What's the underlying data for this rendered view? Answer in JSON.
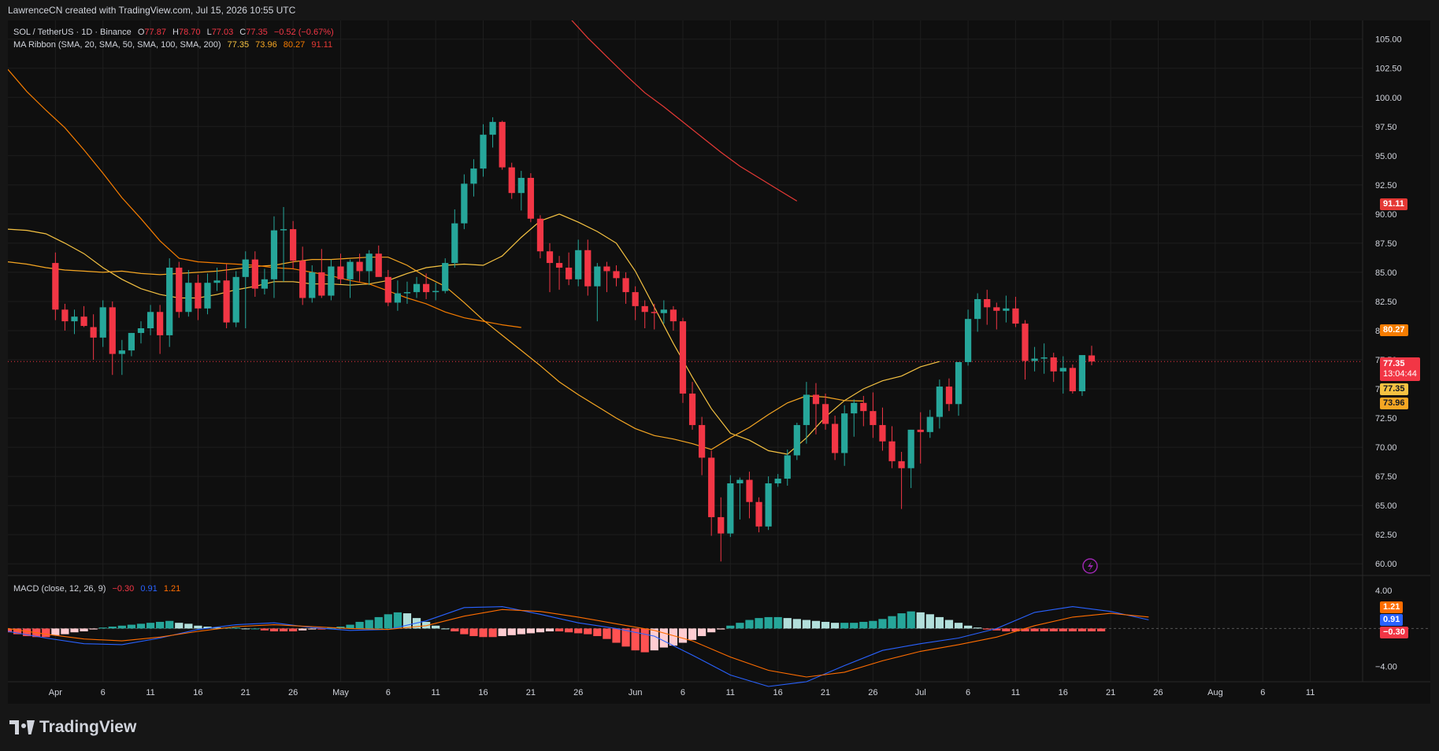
{
  "header": {
    "credit": "LawrenceCN created with TradingView.com, Jul 15, 2026 10:55 UTC"
  },
  "legend": {
    "symbol": "SOL / TetherUS · 1D · Binance",
    "o_label": "O",
    "o_value": "77.87",
    "h_label": "H",
    "h_value": "78.70",
    "l_label": "L",
    "l_value": "77.03",
    "c_label": "C",
    "c_value": "77.35",
    "change": "−0.52 (−0.67%)",
    "ma_title": "MA Ribbon (SMA, 20, SMA, 50, SMA, 100, SMA, 200)",
    "ma_values": [
      "77.35",
      "73.96",
      "80.27",
      "91.11"
    ],
    "macd_title": "MACD (close, 12, 26, 9)",
    "macd_values": [
      "−0.30",
      "0.91",
      "1.21"
    ]
  },
  "price_tags": {
    "ma200": "91.11",
    "ma100": "80.27",
    "last": "77.35",
    "countdown": "13:04:44",
    "ma20": "77.35",
    "ma50": "73.96"
  },
  "macd_tags": {
    "signal": "1.21",
    "macd": "0.91",
    "hist": "−0.30"
  },
  "footer": {
    "brand": "TradingView"
  },
  "colors": {
    "up": "#26a69a",
    "down": "#f23645",
    "ma20": "#f5c242",
    "ma50": "#f5a623",
    "ma100": "#f57c00",
    "ma200": "#e53935",
    "macd": "#2962ff",
    "signal": "#ff6d00"
  },
  "chart_data": [
    {
      "type": "candlestick",
      "title": "SOL / TetherUS · 1D · Binance",
      "x_ticks": [
        {
          "day": 0,
          "label": "Apr"
        },
        {
          "day": 5,
          "label": "6"
        },
        {
          "day": 10,
          "label": "11"
        },
        {
          "day": 15,
          "label": "16"
        },
        {
          "day": 20,
          "label": "21"
        },
        {
          "day": 25,
          "label": "26"
        },
        {
          "day": 30,
          "label": "May"
        },
        {
          "day": 35,
          "label": "6"
        },
        {
          "day": 40,
          "label": "11"
        },
        {
          "day": 45,
          "label": "16"
        },
        {
          "day": 50,
          "label": "21"
        },
        {
          "day": 55,
          "label": "26"
        },
        {
          "day": 61,
          "label": "Jun"
        },
        {
          "day": 66,
          "label": "6"
        },
        {
          "day": 71,
          "label": "11"
        },
        {
          "day": 76,
          "label": "16"
        },
        {
          "day": 81,
          "label": "21"
        },
        {
          "day": 86,
          "label": "26"
        },
        {
          "day": 91,
          "label": "Jul"
        },
        {
          "day": 96,
          "label": "6"
        },
        {
          "day": 101,
          "label": "11"
        },
        {
          "day": 106,
          "label": "16"
        },
        {
          "day": 111,
          "label": "21"
        },
        {
          "day": 116,
          "label": "26"
        },
        {
          "day": 122,
          "label": "Aug"
        },
        {
          "day": 127,
          "label": "6"
        },
        {
          "day": 132,
          "label": "11"
        }
      ],
      "y_ticks": [
        "60.00",
        "62.50",
        "65.00",
        "67.50",
        "70.00",
        "72.50",
        "75.00",
        "77.50",
        "80.00",
        "82.50",
        "85.00",
        "87.50",
        "90.00",
        "92.50",
        "95.00",
        "97.50",
        "100.00",
        "102.50",
        "105.00"
      ],
      "ylim": [
        59.0,
        106.6
      ],
      "xlim": [
        -5,
        137.5
      ],
      "candles_ohlc": [
        [
          85.8,
          86.7,
          80.9,
          81.8
        ],
        [
          81.8,
          82.3,
          80.0,
          80.8
        ],
        [
          80.8,
          81.8,
          79.7,
          81.2
        ],
        [
          81.2,
          82.1,
          80.3,
          80.4
        ],
        [
          80.3,
          81.4,
          77.5,
          79.4
        ],
        [
          79.4,
          82.6,
          78.6,
          82.0
        ],
        [
          82.0,
          82.5,
          76.2,
          78.0
        ],
        [
          78.0,
          79.2,
          76.2,
          78.3
        ],
        [
          78.3,
          79.8,
          77.8,
          79.8
        ],
        [
          79.8,
          80.8,
          78.9,
          80.2
        ],
        [
          80.2,
          82.2,
          79.6,
          81.6
        ],
        [
          81.6,
          82.2,
          78.0,
          79.6
        ],
        [
          79.6,
          86.2,
          78.6,
          85.4
        ],
        [
          85.4,
          85.9,
          81.1,
          81.6
        ],
        [
          81.6,
          85.2,
          81.2,
          84.1
        ],
        [
          84.1,
          84.8,
          80.9,
          81.9
        ],
        [
          81.9,
          84.9,
          81.4,
          84.1
        ],
        [
          84.1,
          85.4,
          83.4,
          84.3
        ],
        [
          84.3,
          85.7,
          80.2,
          80.7
        ],
        [
          80.7,
          85.1,
          80.3,
          84.6
        ],
        [
          84.6,
          86.8,
          80.2,
          86.1
        ],
        [
          86.1,
          86.8,
          82.9,
          83.6
        ],
        [
          83.6,
          85.3,
          83.1,
          84.4
        ],
        [
          84.4,
          89.8,
          82.8,
          88.6
        ],
        [
          88.6,
          90.6,
          84.2,
          88.7
        ],
        [
          88.7,
          89.4,
          85.3,
          86.0
        ],
        [
          86.0,
          87.2,
          82.2,
          82.8
        ],
        [
          82.8,
          85.6,
          82.4,
          85.0
        ],
        [
          85.0,
          87.0,
          82.8,
          83.0
        ],
        [
          83.0,
          86.1,
          82.6,
          85.5
        ],
        [
          85.5,
          86.6,
          84.0,
          84.4
        ],
        [
          84.4,
          86.1,
          82.8,
          85.9
        ],
        [
          85.9,
          86.6,
          84.2,
          85.1
        ],
        [
          85.1,
          86.9,
          83.9,
          86.6
        ],
        [
          86.6,
          87.3,
          84.9,
          84.6
        ],
        [
          84.6,
          85.2,
          82.1,
          82.4
        ],
        [
          82.4,
          84.3,
          81.7,
          83.2
        ],
        [
          83.2,
          84.2,
          82.3,
          83.3
        ],
        [
          83.3,
          84.6,
          82.8,
          84.0
        ],
        [
          84.0,
          84.9,
          82.7,
          83.3
        ],
        [
          83.3,
          84.1,
          82.6,
          83.4
        ],
        [
          83.4,
          86.2,
          83.2,
          85.8
        ],
        [
          85.8,
          90.4,
          85.4,
          89.2
        ],
        [
          89.2,
          93.4,
          88.7,
          92.6
        ],
        [
          92.6,
          94.7,
          91.5,
          93.9
        ],
        [
          93.9,
          97.7,
          93.2,
          96.8
        ],
        [
          96.8,
          98.3,
          95.7,
          97.9
        ],
        [
          97.9,
          98.0,
          93.8,
          94.0
        ],
        [
          94.0,
          94.4,
          91.3,
          91.8
        ],
        [
          91.8,
          93.7,
          90.3,
          93.1
        ],
        [
          93.1,
          93.5,
          89.3,
          89.6
        ],
        [
          89.6,
          89.9,
          86.2,
          86.8
        ],
        [
          86.8,
          87.5,
          83.3,
          85.8
        ],
        [
          85.8,
          86.4,
          83.5,
          85.4
        ],
        [
          85.4,
          86.7,
          83.9,
          84.4
        ],
        [
          84.4,
          87.8,
          83.8,
          86.9
        ],
        [
          86.9,
          87.8,
          83.0,
          83.8
        ],
        [
          83.8,
          85.8,
          80.8,
          85.5
        ],
        [
          85.5,
          85.9,
          83.3,
          85.1
        ],
        [
          85.1,
          85.6,
          83.8,
          84.5
        ],
        [
          84.5,
          85.0,
          82.3,
          83.3
        ],
        [
          83.3,
          83.8,
          80.9,
          82.1
        ],
        [
          82.1,
          82.6,
          80.2,
          81.6
        ],
        [
          81.6,
          82.3,
          80.1,
          81.5
        ],
        [
          81.5,
          82.6,
          80.6,
          81.8
        ],
        [
          81.8,
          82.1,
          80.0,
          80.8
        ],
        [
          80.8,
          81.1,
          73.8,
          74.6
        ],
        [
          74.6,
          75.6,
          71.5,
          71.9
        ],
        [
          71.9,
          72.6,
          67.6,
          69.1
        ],
        [
          69.1,
          69.7,
          62.4,
          64.0
        ],
        [
          64.0,
          65.7,
          60.2,
          62.6
        ],
        [
          62.6,
          67.6,
          62.3,
          66.9
        ],
        [
          66.9,
          67.4,
          63.8,
          67.2
        ],
        [
          67.2,
          67.9,
          63.9,
          65.3
        ],
        [
          65.3,
          65.7,
          62.7,
          63.2
        ],
        [
          63.2,
          67.5,
          62.9,
          66.9
        ],
        [
          66.9,
          67.7,
          66.6,
          67.3
        ],
        [
          67.3,
          69.8,
          66.7,
          69.3
        ],
        [
          69.3,
          72.1,
          68.9,
          71.9
        ],
        [
          71.9,
          75.6,
          70.3,
          74.5
        ],
        [
          74.5,
          75.5,
          71.1,
          73.7
        ],
        [
          73.7,
          74.6,
          71.5,
          72.0
        ],
        [
          72.0,
          72.7,
          68.9,
          69.5
        ],
        [
          69.5,
          73.6,
          68.4,
          72.9
        ],
        [
          72.9,
          74.1,
          70.9,
          73.8
        ],
        [
          73.8,
          74.4,
          71.8,
          73.1
        ],
        [
          73.1,
          74.7,
          70.8,
          71.9
        ],
        [
          71.9,
          73.4,
          69.7,
          70.5
        ],
        [
          70.5,
          71.8,
          68.2,
          68.8
        ],
        [
          68.8,
          69.6,
          64.7,
          68.2
        ],
        [
          68.2,
          69.3,
          66.5,
          71.5
        ],
        [
          71.5,
          73.0,
          68.6,
          71.3
        ],
        [
          71.3,
          73.2,
          70.8,
          72.6
        ],
        [
          72.6,
          75.8,
          71.6,
          75.2
        ],
        [
          75.2,
          75.9,
          73.1,
          73.7
        ],
        [
          73.7,
          77.2,
          72.7,
          77.3
        ],
        [
          77.3,
          81.8,
          77.0,
          81.0
        ],
        [
          81.0,
          83.2,
          79.9,
          82.7
        ],
        [
          82.7,
          83.5,
          80.5,
          82.0
        ],
        [
          82.0,
          82.4,
          80.1,
          81.7
        ],
        [
          81.7,
          83.0,
          80.7,
          81.9
        ],
        [
          81.9,
          82.9,
          80.3,
          80.6
        ],
        [
          80.6,
          80.9,
          75.8,
          77.4
        ],
        [
          77.4,
          78.6,
          76.5,
          77.6
        ],
        [
          77.6,
          78.9,
          76.3,
          77.7
        ],
        [
          77.7,
          78.1,
          75.6,
          76.5
        ],
        [
          76.5,
          77.8,
          74.6,
          76.8
        ],
        [
          76.8,
          77.1,
          74.6,
          74.8
        ],
        [
          74.8,
          77.1,
          74.4,
          77.9
        ],
        [
          77.87,
          78.7,
          77.03,
          77.35
        ]
      ],
      "series": [
        {
          "name": "SMA 20",
          "color": "#f5c242",
          "start_day": -5,
          "values": [
            88.7,
            88.6,
            88.3,
            87.5,
            86.6,
            85.4,
            84.4,
            83.6,
            83.1,
            82.8,
            82.8,
            83.1,
            83.5,
            83.8,
            84.2,
            84.2,
            84.0,
            84.0,
            83.9,
            84.0,
            84.3,
            84.9,
            85.4,
            85.6,
            85.7,
            85.6,
            86.4,
            88.0,
            89.4,
            90.0,
            89.3,
            88.5,
            87.5,
            85.1,
            82.0,
            78.9,
            76.0,
            73.3,
            71.2,
            70.6,
            69.7,
            69.4,
            70.8,
            72.6,
            74.0,
            75.0,
            75.7,
            76.1,
            76.9,
            77.35
          ]
        },
        {
          "name": "SMA 50",
          "color": "#f5a623",
          "start_day": -5,
          "values": [
            85.9,
            85.7,
            85.4,
            85.2,
            85.1,
            85.0,
            85.1,
            84.9,
            84.8,
            84.9,
            85.0,
            85.1,
            85.3,
            85.5,
            85.6,
            85.9,
            86.1,
            86.1,
            86.2,
            86.3,
            86.3,
            85.6,
            84.6,
            83.8,
            82.4,
            80.9,
            79.6,
            78.3,
            77.0,
            75.6,
            74.5,
            73.5,
            72.5,
            71.6,
            71.0,
            70.7,
            70.3,
            69.8,
            70.8,
            71.7,
            72.8,
            73.8,
            74.4,
            74.3,
            74.0,
            73.96
          ]
        },
        {
          "name": "SMA 100",
          "color": "#f57c00",
          "start_day": -5,
          "values": [
            102.4,
            100.5,
            98.9,
            97.4,
            95.5,
            93.5,
            91.4,
            89.6,
            87.7,
            86.2,
            85.9,
            85.8,
            85.7,
            85.6,
            85.4,
            85.3,
            85.0,
            84.7,
            84.3,
            84.0,
            83.4,
            82.8,
            82.3,
            81.6,
            81.1,
            80.8,
            80.5,
            80.27
          ]
        },
        {
          "name": "SMA 200",
          "color": "#e53935",
          "start_day": 52,
          "values": [
            108.6,
            106.9,
            105.1,
            103.5,
            101.9,
            100.4,
            99.2,
            97.9,
            96.6,
            95.3,
            94.1,
            93.1,
            92.1,
            91.11
          ]
        }
      ]
    },
    {
      "type": "bar",
      "title": "MACD (close, 12, 26, 9)",
      "y_ticks": [
        "4.00",
        "−4.00"
      ],
      "ylim": [
        -5.6,
        5.5
      ],
      "x_day_range": [
        -5,
        110
      ],
      "histogram": [
        -0.4,
        -0.6,
        -0.8,
        -0.9,
        -0.9,
        -0.7,
        -0.6,
        -0.4,
        -0.3,
        -0.1,
        0.1,
        0.2,
        0.3,
        0.4,
        0.5,
        0.6,
        0.7,
        0.8,
        0.6,
        0.5,
        0.3,
        0.2,
        0.1,
        0.1,
        0.1,
        0.0,
        0.0,
        -0.2,
        -0.3,
        -0.3,
        -0.3,
        -0.2,
        -0.1,
        -0.1,
        0.1,
        0.2,
        0.4,
        0.7,
        0.9,
        1.2,
        1.5,
        1.7,
        1.6,
        1.1,
        0.7,
        0.3,
        0.0,
        -0.3,
        -0.6,
        -0.8,
        -0.9,
        -0.9,
        -0.8,
        -0.7,
        -0.6,
        -0.5,
        -0.4,
        -0.3,
        -0.3,
        -0.4,
        -0.5,
        -0.6,
        -0.8,
        -1.1,
        -1.5,
        -1.9,
        -2.3,
        -2.5,
        -2.3,
        -2.0,
        -1.8,
        -1.5,
        -1.2,
        -0.8,
        -0.4,
        -0.1,
        0.3,
        0.6,
        0.9,
        1.1,
        1.2,
        1.2,
        1.1,
        1.0,
        0.9,
        0.8,
        0.7,
        0.6,
        0.6,
        0.6,
        0.7,
        0.8,
        1.0,
        1.3,
        1.6,
        1.8,
        1.7,
        1.5,
        1.2,
        0.9,
        0.6,
        0.3,
        0.1,
        -0.1,
        -0.2,
        -0.3,
        -0.3,
        -0.3,
        -0.3,
        -0.3,
        -0.3,
        -0.3,
        -0.3,
        -0.3,
        -0.3,
        -0.3
      ],
      "series": [
        {
          "name": "MACD",
          "color": "#2962ff",
          "start_day": -5,
          "values": [
            -0.3,
            -1.0,
            -1.6,
            -1.7,
            -1.0,
            -0.1,
            0.4,
            0.6,
            0.1,
            -0.2,
            -0.1,
            0.8,
            2.2,
            2.3,
            1.5,
            0.6,
            0.0,
            -0.8,
            -2.8,
            -4.9,
            -6.1,
            -5.6,
            -3.9,
            -2.3,
            -1.6,
            -1.0,
            0.0,
            1.7,
            2.3,
            1.8,
            0.91
          ]
        },
        {
          "name": "Signal",
          "color": "#ff6d00",
          "start_day": -5,
          "values": [
            0.0,
            -0.6,
            -1.1,
            -1.3,
            -0.9,
            -0.3,
            0.2,
            0.4,
            0.2,
            0.0,
            -0.1,
            0.3,
            1.3,
            2.0,
            1.8,
            1.2,
            0.5,
            -0.2,
            -1.3,
            -3.0,
            -4.4,
            -5.1,
            -4.6,
            -3.4,
            -2.4,
            -1.7,
            -0.9,
            0.3,
            1.2,
            1.6,
            1.21
          ]
        }
      ]
    }
  ]
}
